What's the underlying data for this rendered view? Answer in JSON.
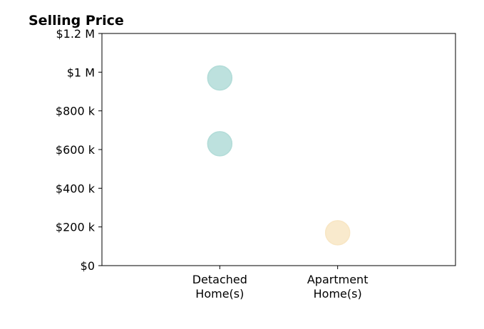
{
  "chart_data": {
    "type": "scatter",
    "title": "Selling Price",
    "xlabel": "",
    "ylabel": "",
    "categories": [
      [
        "Detached",
        "Home(s)"
      ],
      [
        "Apartment",
        "Home(s)"
      ]
    ],
    "points": [
      {
        "category_index": 0,
        "value": 970000,
        "color": "#b2dcd8"
      },
      {
        "category_index": 0,
        "value": 630000,
        "color": "#b2dcd8"
      },
      {
        "category_index": 1,
        "value": 170000,
        "color": "#f8e6c4"
      }
    ],
    "ylim": [
      0,
      1200000
    ],
    "y_ticks": [
      {
        "value": 0,
        "label": "$0"
      },
      {
        "value": 200000,
        "label": "$200 k"
      },
      {
        "value": 400000,
        "label": "$400 k"
      },
      {
        "value": 600000,
        "label": "$600 k"
      },
      {
        "value": 800000,
        "label": "$800 k"
      },
      {
        "value": 1000000,
        "label": "$1 M"
      },
      {
        "value": 1200000,
        "label": "$1.2 M"
      }
    ],
    "grid": false,
    "legend": "none"
  }
}
